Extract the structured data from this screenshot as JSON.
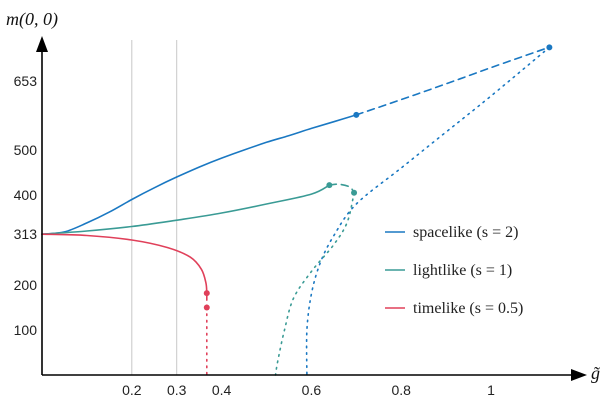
{
  "chart_data": {
    "type": "line",
    "xlabel": "g̃",
    "ylabel": "m(0, 0)",
    "xlim": [
      0.0,
      1.15
    ],
    "ylim": [
      0,
      765
    ],
    "x_ticks": [
      0.2,
      0.3,
      0.4,
      0.6,
      0.8,
      1
    ],
    "x_tick_labels": [
      "0.2",
      "0.3",
      "0.4",
      "0.6",
      "0.8",
      "1"
    ],
    "y_ticks": [
      100,
      200,
      313,
      400,
      500,
      653
    ],
    "y_tick_labels": [
      "100",
      "200",
      "313",
      "400",
      "500",
      "653"
    ],
    "vertical_gridlines": [
      0.2,
      0.3
    ],
    "legend_position": "right",
    "series": [
      {
        "name": "spacelike (s = 2)",
        "color": "#1a78c2",
        "solid": [
          [
            0.0,
            313
          ],
          [
            0.05,
            318
          ],
          [
            0.1,
            338
          ],
          [
            0.15,
            362
          ],
          [
            0.2,
            390
          ],
          [
            0.25,
            416
          ],
          [
            0.3,
            440
          ],
          [
            0.35,
            462
          ],
          [
            0.4,
            482
          ],
          [
            0.45,
            500
          ],
          [
            0.5,
            517
          ],
          [
            0.55,
            532
          ],
          [
            0.6,
            548
          ],
          [
            0.65,
            563
          ],
          [
            0.7,
            578
          ]
        ],
        "dashed": [
          [
            0.7,
            578
          ],
          [
            0.8,
            612
          ],
          [
            0.9,
            647
          ],
          [
            1.0,
            683
          ],
          [
            1.1,
            718
          ],
          [
            1.13,
            728
          ]
        ],
        "dotted": [
          [
            1.13,
            728
          ],
          [
            1.0,
            620
          ],
          [
            0.9,
            540
          ],
          [
            0.8,
            460
          ],
          [
            0.7,
            380
          ],
          [
            0.65,
            310
          ],
          [
            0.62,
            250
          ],
          [
            0.6,
            180
          ],
          [
            0.59,
            100
          ],
          [
            0.59,
            0
          ]
        ],
        "markers": [
          [
            0.7,
            578
          ],
          [
            1.13,
            728
          ]
        ]
      },
      {
        "name": "lightlike (s = 1)",
        "color": "#3a9b95",
        "solid": [
          [
            0.0,
            313
          ],
          [
            0.1,
            320
          ],
          [
            0.2,
            330
          ],
          [
            0.3,
            344
          ],
          [
            0.4,
            360
          ],
          [
            0.5,
            380
          ],
          [
            0.6,
            402
          ],
          [
            0.64,
            422
          ]
        ],
        "dashed": [
          [
            0.64,
            422
          ],
          [
            0.66,
            424
          ],
          [
            0.685,
            418
          ],
          [
            0.695,
            405
          ]
        ],
        "dotted": [
          [
            0.695,
            405
          ],
          [
            0.68,
            340
          ],
          [
            0.65,
            290
          ],
          [
            0.6,
            230
          ],
          [
            0.56,
            170
          ],
          [
            0.54,
            100
          ],
          [
            0.525,
            30
          ],
          [
            0.52,
            0
          ]
        ],
        "markers": [
          [
            0.64,
            422
          ],
          [
            0.695,
            405
          ]
        ]
      },
      {
        "name": "timelike (s = 0.5)",
        "color": "#e0405a",
        "solid": [
          [
            0.0,
            313
          ],
          [
            0.1,
            310
          ],
          [
            0.2,
            300
          ],
          [
            0.28,
            283
          ],
          [
            0.33,
            262
          ],
          [
            0.355,
            235
          ],
          [
            0.365,
            205
          ],
          [
            0.367,
            182
          ]
        ],
        "dashed": [
          [
            0.367,
            182
          ],
          [
            0.367,
            150
          ]
        ],
        "dotted": [
          [
            0.367,
            150
          ],
          [
            0.367,
            0
          ]
        ],
        "markers": [
          [
            0.367,
            182
          ],
          [
            0.367,
            150
          ]
        ]
      }
    ]
  }
}
